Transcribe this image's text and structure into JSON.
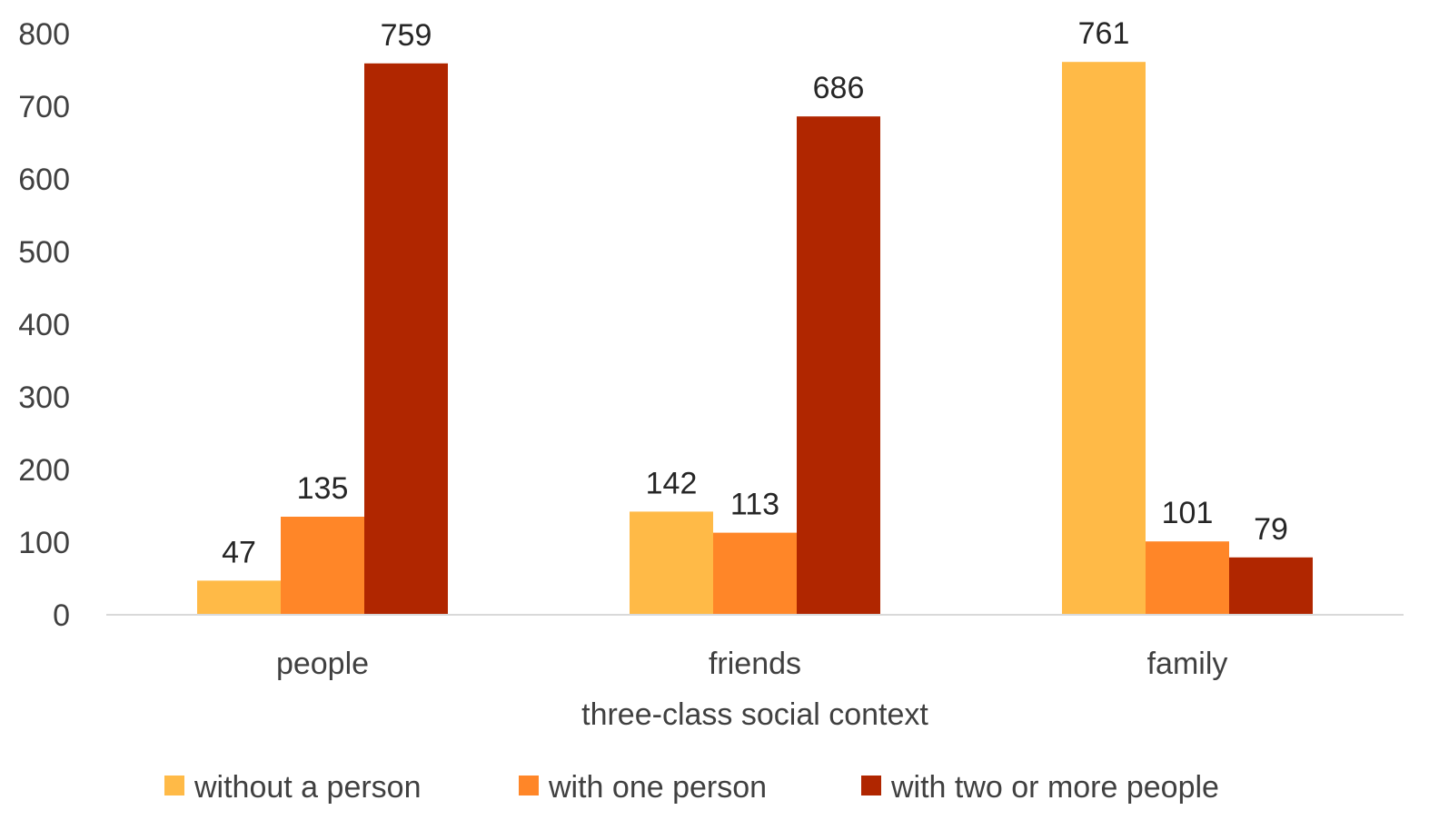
{
  "chart_data": {
    "type": "bar",
    "title": "",
    "xlabel": "three-class social context",
    "ylabel": "",
    "ylim": [
      0,
      800
    ],
    "yticks": [
      0,
      100,
      200,
      300,
      400,
      500,
      600,
      700,
      800
    ],
    "categories": [
      "people",
      "friends",
      "family"
    ],
    "series": [
      {
        "name": "without a person",
        "color": "#FFBA47",
        "values": [
          47,
          142,
          761
        ]
      },
      {
        "name": "with one person",
        "color": "#FF8628",
        "values": [
          135,
          113,
          101
        ]
      },
      {
        "name": "with two or more people",
        "color": "#B02600",
        "values": [
          759,
          686,
          79
        ]
      }
    ],
    "grid": false,
    "legend": "bottom"
  }
}
